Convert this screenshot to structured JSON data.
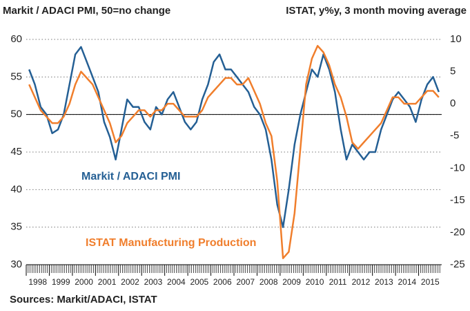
{
  "chart_data": {
    "type": "line",
    "title": "Markit / ADACI PMI, 50=no change",
    "subtitle": "ISTAT, y%y, 3 month moving average",
    "source": "Sources: Markit/ADACI, ISTAT",
    "x": [
      1998.125,
      1998.375,
      1998.625,
      1998.875,
      1999.125,
      1999.375,
      1999.625,
      1999.875,
      2000.125,
      2000.375,
      2000.625,
      2000.875,
      2001.125,
      2001.375,
      2001.625,
      2001.875,
      2002.125,
      2002.375,
      2002.625,
      2002.875,
      2003.125,
      2003.375,
      2003.625,
      2003.875,
      2004.125,
      2004.375,
      2004.625,
      2004.875,
      2005.125,
      2005.375,
      2005.625,
      2005.875,
      2006.125,
      2006.375,
      2006.625,
      2006.875,
      2007.125,
      2007.375,
      2007.625,
      2007.875,
      2008.125,
      2008.375,
      2008.625,
      2008.875,
      2009.125,
      2009.375,
      2009.625,
      2009.875,
      2010.125,
      2010.375,
      2010.625,
      2010.875,
      2011.125,
      2011.375,
      2011.625,
      2011.875,
      2012.125,
      2012.375,
      2012.625,
      2012.875,
      2013.125,
      2013.375,
      2013.625,
      2013.875,
      2014.125,
      2014.375,
      2014.625,
      2014.875,
      2015.125,
      2015.375,
      2015.625,
      2015.875
    ],
    "series": [
      {
        "name": "Markit / ADACI PMI",
        "color": "#245f94",
        "axis": "y",
        "values": [
          56,
          54,
          51,
          50,
          47.5,
          48,
          50,
          54,
          58,
          59,
          57,
          55,
          53,
          49,
          47,
          44,
          48,
          52,
          51,
          51,
          49,
          48,
          51,
          50,
          52,
          53,
          51,
          49,
          48,
          49,
          52,
          54,
          57,
          58,
          56,
          56,
          55,
          54,
          53,
          51,
          50,
          48,
          44,
          38,
          35,
          40,
          46,
          50,
          53,
          56,
          55,
          58,
          56,
          53,
          48,
          44,
          46,
          45,
          44,
          45,
          45,
          48,
          50,
          52,
          53,
          52,
          51,
          49,
          52,
          54,
          55,
          53
        ]
      },
      {
        "name": "ISTAT Manufacturing Production",
        "color": "#f07e2c",
        "axis": "y2",
        "values": [
          3,
          1,
          -1,
          -2,
          -3,
          -3,
          -2,
          0,
          3,
          5,
          4,
          3,
          1,
          -1,
          -3,
          -6,
          -5,
          -3,
          -2,
          -1,
          -1,
          -2,
          -1,
          -1,
          0,
          0,
          -1,
          -2,
          -2,
          -2,
          -1,
          1,
          2,
          3,
          4,
          4,
          3,
          3,
          4,
          2,
          0,
          -3,
          -5,
          -12,
          -24,
          -23,
          -17,
          -7,
          3,
          7,
          9,
          8,
          6,
          3,
          1,
          -2,
          -6,
          -7,
          -6,
          -5,
          -4,
          -3,
          -1,
          1,
          1,
          0,
          0,
          0,
          1,
          2,
          2,
          1
        ]
      }
    ],
    "xlim": [
      1998,
      2016
    ],
    "xticks": [
      1998,
      1999,
      2000,
      2001,
      2002,
      2003,
      2004,
      2005,
      2006,
      2007,
      2008,
      2009,
      2010,
      2011,
      2012,
      2013,
      2014,
      2015
    ],
    "ylim": [
      30,
      60
    ],
    "yticks": [
      30,
      35,
      40,
      45,
      50,
      55,
      60
    ],
    "y2lim": [
      -25,
      10
    ],
    "y2ticks": [
      -25,
      -20,
      -15,
      -10,
      -5,
      0,
      5,
      10
    ],
    "hline": 50,
    "grid": true
  }
}
